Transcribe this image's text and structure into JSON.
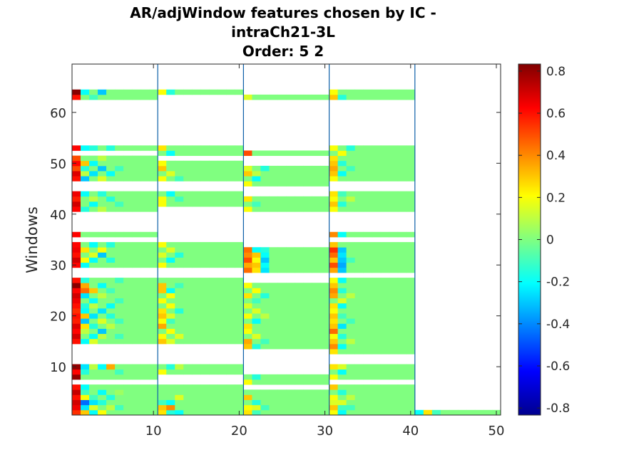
{
  "chart_data": {
    "type": "heatmap",
    "title": [
      "AR/adjWindow features chosen by IC -",
      "intraCh21-3L",
      "Order: 5 2"
    ],
    "xlabel": "",
    "ylabel": "Windows",
    "xlim": [
      0.5,
      50.5
    ],
    "ylim": [
      0.5,
      69.5
    ],
    "xticks": [
      10,
      20,
      30,
      40,
      50
    ],
    "yticks": [
      10,
      20,
      30,
      40,
      50,
      60
    ],
    "colorbar": {
      "colormap": "jet",
      "clim": [
        -0.8333,
        0.8333
      ],
      "ticks": [
        0.8,
        0.6,
        0.4,
        0.2,
        0,
        -0.2,
        -0.4,
        -0.6,
        -0.8
      ],
      "tick_labels": [
        "0.8",
        "0.6",
        "0.4",
        "0.2",
        "0",
        "-0.2",
        "-0.4",
        "-0.6",
        "-0.8"
      ]
    },
    "block_separators_x": [
      10.5,
      20.5,
      30.5,
      40.5
    ],
    "background_value": 0,
    "blocks": [
      {
        "cols": [
          1,
          10
        ],
        "rows": [
          [
            1,
            6
          ],
          [
            8,
            10
          ],
          [
            15,
            27
          ],
          [
            30,
            34
          ],
          [
            36,
            36
          ],
          [
            41,
            44
          ],
          [
            47,
            51
          ],
          [
            53,
            53
          ],
          [
            63,
            64
          ]
        ]
      },
      {
        "cols": [
          11,
          20
        ],
        "rows": [
          [
            1,
            6
          ],
          [
            9,
            10
          ],
          [
            15,
            27
          ],
          [
            30,
            34
          ],
          [
            42,
            44
          ],
          [
            47,
            50
          ],
          [
            52,
            53
          ],
          [
            64,
            64
          ]
        ]
      },
      {
        "cols": [
          21,
          30
        ],
        "rows": [
          [
            1,
            5
          ],
          [
            7,
            8
          ],
          [
            14,
            26
          ],
          [
            29,
            33
          ],
          [
            41,
            43
          ],
          [
            46,
            49
          ],
          [
            52,
            52
          ],
          [
            63,
            63
          ]
        ]
      },
      {
        "cols": [
          31,
          40
        ],
        "rows": [
          [
            1,
            6
          ],
          [
            8,
            10
          ],
          [
            13,
            27
          ],
          [
            29,
            34
          ],
          [
            36,
            36
          ],
          [
            41,
            44
          ],
          [
            47,
            51
          ],
          [
            52,
            53
          ],
          [
            63,
            64
          ]
        ]
      },
      {
        "cols": [
          41,
          50
        ],
        "rows": [
          [
            1,
            1
          ]
        ]
      }
    ],
    "cells": [
      [
        1,
        1,
        0.55
      ],
      [
        1,
        2,
        0.65
      ],
      [
        1,
        3,
        0.7
      ],
      [
        1,
        4,
        0.6
      ],
      [
        1,
        5,
        0.72
      ],
      [
        1,
        6,
        0.6
      ],
      [
        1,
        8,
        0.8
      ],
      [
        1,
        9,
        0.62
      ],
      [
        1,
        10,
        0.8
      ],
      [
        1,
        15,
        0.6
      ],
      [
        1,
        16,
        0.7
      ],
      [
        1,
        17,
        0.62
      ],
      [
        1,
        18,
        0.68
      ],
      [
        1,
        19,
        0.58
      ],
      [
        1,
        20,
        0.6
      ],
      [
        1,
        21,
        0.55
      ],
      [
        1,
        22,
        0.6
      ],
      [
        1,
        23,
        0.65
      ],
      [
        1,
        24,
        0.7
      ],
      [
        1,
        25,
        0.62
      ],
      [
        1,
        26,
        0.82
      ],
      [
        1,
        27,
        0.6
      ],
      [
        1,
        30,
        0.62
      ],
      [
        1,
        31,
        0.7
      ],
      [
        1,
        32,
        0.6
      ],
      [
        1,
        33,
        0.65
      ],
      [
        1,
        34,
        0.62
      ],
      [
        1,
        36,
        0.62
      ],
      [
        1,
        41,
        0.62
      ],
      [
        1,
        42,
        0.7
      ],
      [
        1,
        43,
        0.58
      ],
      [
        1,
        44,
        0.65
      ],
      [
        1,
        47,
        0.6
      ],
      [
        1,
        48,
        0.68
      ],
      [
        1,
        49,
        0.5
      ],
      [
        1,
        50,
        0.62
      ],
      [
        1,
        51,
        0.5
      ],
      [
        1,
        53,
        0.62
      ],
      [
        1,
        63,
        0.6
      ],
      [
        1,
        64,
        0.82
      ],
      [
        2,
        1,
        0.3
      ],
      [
        2,
        2,
        -0.25
      ],
      [
        2,
        3,
        -0.45
      ],
      [
        2,
        4,
        0.2
      ],
      [
        2,
        5,
        -0.1
      ],
      [
        2,
        6,
        -0.2
      ],
      [
        2,
        9,
        -0.15
      ],
      [
        2,
        10,
        -0.25
      ],
      [
        2,
        15,
        -0.2
      ],
      [
        2,
        17,
        0.1
      ],
      [
        2,
        18,
        0.25
      ],
      [
        2,
        19,
        -0.3
      ],
      [
        2,
        20,
        0.3
      ],
      [
        2,
        21,
        -0.2
      ],
      [
        2,
        22,
        -0.15
      ],
      [
        2,
        24,
        -0.25
      ],
      [
        2,
        25,
        0.45
      ],
      [
        2,
        26,
        0.35
      ],
      [
        2,
        27,
        -0.15
      ],
      [
        2,
        30,
        -0.2
      ],
      [
        2,
        31,
        0.2
      ],
      [
        2,
        33,
        0.25
      ],
      [
        2,
        41,
        -0.15
      ],
      [
        2,
        44,
        -0.2
      ],
      [
        2,
        47,
        -0.3
      ],
      [
        2,
        48,
        0.1
      ],
      [
        2,
        49,
        -0.15
      ],
      [
        2,
        50,
        0.3
      ],
      [
        2,
        53,
        -0.2
      ],
      [
        2,
        64,
        -0.2
      ],
      [
        3,
        1,
        -0.2
      ],
      [
        3,
        2,
        0.15
      ],
      [
        3,
        3,
        -0.25
      ],
      [
        3,
        4,
        -0.1
      ],
      [
        3,
        10,
        0.1
      ],
      [
        3,
        15,
        0.15
      ],
      [
        3,
        16,
        -0.2
      ],
      [
        3,
        18,
        -0.15
      ],
      [
        3,
        20,
        -0.25
      ],
      [
        3,
        22,
        0.1
      ],
      [
        3,
        23,
        -0.2
      ],
      [
        3,
        25,
        0.3
      ],
      [
        3,
        31,
        -0.2
      ],
      [
        3,
        32,
        0.15
      ],
      [
        3,
        34,
        -0.2
      ],
      [
        3,
        42,
        -0.2
      ],
      [
        3,
        43,
        0.1
      ],
      [
        3,
        48,
        -0.25
      ],
      [
        3,
        50,
        -0.2
      ],
      [
        3,
        53,
        -0.15
      ],
      [
        3,
        63,
        -0.1
      ],
      [
        4,
        1,
        0.2
      ],
      [
        4,
        3,
        -0.15
      ],
      [
        4,
        5,
        -0.2
      ],
      [
        4,
        10,
        -0.2
      ],
      [
        4,
        16,
        0.1
      ],
      [
        4,
        17,
        -0.3
      ],
      [
        4,
        19,
        0.15
      ],
      [
        4,
        21,
        -0.25
      ],
      [
        4,
        24,
        0.1
      ],
      [
        4,
        26,
        -0.2
      ],
      [
        4,
        32,
        -0.3
      ],
      [
        4,
        33,
        0.2
      ],
      [
        4,
        41,
        0.1
      ],
      [
        4,
        44,
        -0.15
      ],
      [
        4,
        47,
        0.15
      ],
      [
        4,
        49,
        -0.3
      ],
      [
        4,
        51,
        0.1
      ],
      [
        4,
        64,
        -0.3
      ],
      [
        5,
        2,
        0.1
      ],
      [
        5,
        4,
        -0.15
      ],
      [
        5,
        10,
        0.35
      ],
      [
        5,
        18,
        0.1
      ],
      [
        5,
        20,
        -0.15
      ],
      [
        5,
        22,
        -0.2
      ],
      [
        5,
        25,
        -0.1
      ],
      [
        5,
        31,
        -0.15
      ],
      [
        5,
        34,
        -0.15
      ],
      [
        5,
        43,
        -0.15
      ],
      [
        5,
        48,
        -0.2
      ],
      [
        5,
        53,
        -0.15
      ],
      [
        6,
        2,
        -0.1
      ],
      [
        6,
        5,
        0.05
      ],
      [
        6,
        9,
        -0.1
      ],
      [
        6,
        16,
        -0.1
      ],
      [
        6,
        19,
        -0.1
      ],
      [
        6,
        23,
        -0.1
      ],
      [
        6,
        27,
        -0.1
      ],
      [
        6,
        42,
        -0.1
      ],
      [
        6,
        49,
        -0.1
      ],
      [
        11,
        1,
        0.25
      ],
      [
        11,
        2,
        0.3
      ],
      [
        11,
        3,
        -0.1
      ],
      [
        11,
        9,
        0.2
      ],
      [
        11,
        15,
        0.3
      ],
      [
        11,
        16,
        0.2
      ],
      [
        11,
        18,
        0.35
      ],
      [
        11,
        19,
        0.2
      ],
      [
        11,
        20,
        0.3
      ],
      [
        11,
        21,
        0.25
      ],
      [
        11,
        23,
        0.2
      ],
      [
        11,
        25,
        0.3
      ],
      [
        11,
        26,
        0.3
      ],
      [
        11,
        30,
        0.2
      ],
      [
        11,
        32,
        0.15
      ],
      [
        11,
        34,
        0.2
      ],
      [
        11,
        42,
        0.2
      ],
      [
        11,
        43,
        0.2
      ],
      [
        11,
        47,
        0.2
      ],
      [
        11,
        49,
        0.3
      ],
      [
        11,
        50,
        0.2
      ],
      [
        11,
        53,
        0.25
      ],
      [
        11,
        64,
        0.2
      ],
      [
        12,
        1,
        -0.15
      ],
      [
        12,
        2,
        0.4
      ],
      [
        12,
        3,
        -0.2
      ],
      [
        12,
        10,
        -0.15
      ],
      [
        12,
        15,
        0.15
      ],
      [
        12,
        17,
        0.2
      ],
      [
        12,
        19,
        -0.1
      ],
      [
        12,
        20,
        0.15
      ],
      [
        12,
        22,
        0.2
      ],
      [
        12,
        24,
        0.2
      ],
      [
        12,
        25,
        -0.2
      ],
      [
        12,
        31,
        -0.2
      ],
      [
        12,
        33,
        0.15
      ],
      [
        12,
        44,
        -0.2
      ],
      [
        12,
        48,
        0.15
      ],
      [
        12,
        52,
        -0.2
      ],
      [
        12,
        64,
        -0.15
      ],
      [
        13,
        1,
        -0.2
      ],
      [
        13,
        4,
        0.15
      ],
      [
        13,
        10,
        0.1
      ],
      [
        13,
        16,
        0.15
      ],
      [
        13,
        21,
        -0.15
      ],
      [
        13,
        26,
        -0.1
      ],
      [
        13,
        32,
        -0.15
      ],
      [
        13,
        43,
        -0.1
      ],
      [
        13,
        47,
        -0.1
      ],
      [
        21,
        1,
        0.25
      ],
      [
        21,
        2,
        0.2
      ],
      [
        21,
        4,
        0.3
      ],
      [
        21,
        7,
        0.2
      ],
      [
        21,
        14,
        0.3
      ],
      [
        21,
        15,
        0.35
      ],
      [
        21,
        17,
        0.2
      ],
      [
        21,
        18,
        0.25
      ],
      [
        21,
        20,
        0.2
      ],
      [
        21,
        22,
        0.15
      ],
      [
        21,
        24,
        0.25
      ],
      [
        21,
        26,
        0.2
      ],
      [
        21,
        29,
        0.45
      ],
      [
        21,
        30,
        0.35
      ],
      [
        21,
        31,
        0.5
      ],
      [
        21,
        32,
        0.4
      ],
      [
        21,
        33,
        0.45
      ],
      [
        21,
        41,
        0.2
      ],
      [
        21,
        43,
        0.25
      ],
      [
        21,
        46,
        0.2
      ],
      [
        21,
        48,
        0.3
      ],
      [
        21,
        49,
        0.15
      ],
      [
        21,
        52,
        0.5
      ],
      [
        21,
        63,
        0.15
      ],
      [
        22,
        1,
        -0.1
      ],
      [
        22,
        2,
        0.15
      ],
      [
        22,
        3,
        -0.15
      ],
      [
        22,
        8,
        -0.15
      ],
      [
        22,
        14,
        -0.15
      ],
      [
        22,
        16,
        0.15
      ],
      [
        22,
        19,
        -0.2
      ],
      [
        22,
        21,
        0.15
      ],
      [
        22,
        23,
        -0.1
      ],
      [
        22,
        25,
        0.2
      ],
      [
        22,
        29,
        0.25
      ],
      [
        22,
        30,
        0.3
      ],
      [
        22,
        31,
        0.2
      ],
      [
        22,
        32,
        0.3
      ],
      [
        22,
        33,
        -0.2
      ],
      [
        22,
        42,
        -0.1
      ],
      [
        22,
        47,
        -0.2
      ],
      [
        22,
        48,
        0.1
      ],
      [
        23,
        2,
        -0.1
      ],
      [
        23,
        15,
        -0.1
      ],
      [
        23,
        20,
        0.1
      ],
      [
        23,
        24,
        -0.15
      ],
      [
        23,
        29,
        -0.25
      ],
      [
        23,
        30,
        -0.2
      ],
      [
        23,
        31,
        -0.3
      ],
      [
        23,
        32,
        -0.2
      ],
      [
        23,
        33,
        -0.15
      ],
      [
        23,
        49,
        -0.15
      ],
      [
        31,
        1,
        0.2
      ],
      [
        31,
        2,
        0.3
      ],
      [
        31,
        3,
        0.15
      ],
      [
        31,
        4,
        0.2
      ],
      [
        31,
        6,
        0.3
      ],
      [
        31,
        8,
        0.2
      ],
      [
        31,
        10,
        0.25
      ],
      [
        31,
        13,
        0.25
      ],
      [
        31,
        14,
        0.4
      ],
      [
        31,
        15,
        0.3
      ],
      [
        31,
        16,
        0.2
      ],
      [
        31,
        17,
        0.45
      ],
      [
        31,
        18,
        0.3
      ],
      [
        31,
        19,
        0.25
      ],
      [
        31,
        20,
        0.3
      ],
      [
        31,
        21,
        0.2
      ],
      [
        31,
        22,
        0.25
      ],
      [
        31,
        24,
        0.35
      ],
      [
        31,
        25,
        0.4
      ],
      [
        31,
        26,
        0.3
      ],
      [
        31,
        27,
        0.2
      ],
      [
        31,
        29,
        0.35
      ],
      [
        31,
        30,
        0.5
      ],
      [
        31,
        31,
        0.3
      ],
      [
        31,
        32,
        0.45
      ],
      [
        31,
        33,
        0.55
      ],
      [
        31,
        34,
        0.3
      ],
      [
        31,
        36,
        0.4
      ],
      [
        31,
        41,
        0.2
      ],
      [
        31,
        42,
        0.3
      ],
      [
        31,
        43,
        0.2
      ],
      [
        31,
        44,
        0.25
      ],
      [
        31,
        47,
        0.2
      ],
      [
        31,
        48,
        0.3
      ],
      [
        31,
        49,
        0.35
      ],
      [
        31,
        50,
        0.3
      ],
      [
        31,
        51,
        0.25
      ],
      [
        31,
        53,
        0.2
      ],
      [
        31,
        63,
        0.3
      ],
      [
        31,
        64,
        0.2
      ],
      [
        32,
        1,
        -0.2
      ],
      [
        32,
        2,
        -0.1
      ],
      [
        32,
        3,
        0.15
      ],
      [
        32,
        5,
        -0.15
      ],
      [
        32,
        9,
        -0.2
      ],
      [
        32,
        10,
        0.15
      ],
      [
        32,
        14,
        -0.2
      ],
      [
        32,
        16,
        -0.15
      ],
      [
        32,
        18,
        -0.25
      ],
      [
        32,
        20,
        -0.1
      ],
      [
        32,
        22,
        -0.2
      ],
      [
        32,
        23,
        0.15
      ],
      [
        32,
        25,
        -0.15
      ],
      [
        32,
        27,
        -0.2
      ],
      [
        32,
        29,
        -0.3
      ],
      [
        32,
        30,
        -0.35
      ],
      [
        32,
        31,
        -0.3
      ],
      [
        32,
        32,
        -0.25
      ],
      [
        32,
        33,
        -0.3
      ],
      [
        32,
        36,
        -0.2
      ],
      [
        32,
        42,
        -0.15
      ],
      [
        32,
        44,
        -0.1
      ],
      [
        32,
        48,
        -0.2
      ],
      [
        32,
        50,
        -0.15
      ],
      [
        32,
        52,
        0.2
      ],
      [
        32,
        63,
        -0.15
      ],
      [
        33,
        2,
        -0.1
      ],
      [
        33,
        4,
        0.1
      ],
      [
        33,
        15,
        0.1
      ],
      [
        33,
        19,
        -0.1
      ],
      [
        33,
        24,
        0.1
      ],
      [
        33,
        31,
        -0.1
      ],
      [
        33,
        43,
        0.1
      ],
      [
        33,
        49,
        -0.1
      ],
      [
        33,
        53,
        -0.15
      ],
      [
        41,
        1,
        -0.2
      ],
      [
        42,
        1,
        0.25
      ],
      [
        43,
        1,
        -0.1
      ]
    ]
  }
}
